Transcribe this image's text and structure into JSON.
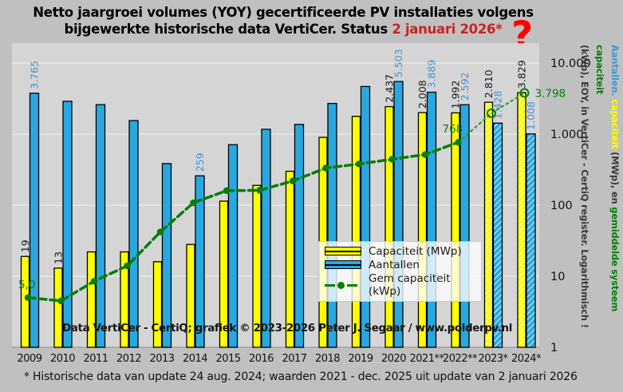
{
  "title": {
    "line1": "Netto jaargroei volumes (YOY) gecertificeerde PV installaties volgens",
    "line2_black": "bijgewerkte historische data VertiCer. Status ",
    "line2_red": "2 januari 2026*"
  },
  "question_mark": "?",
  "watermark": "Data VertiCer - CertiQ; grafiek © 2023-2026  Peter J. Segaar / www.polderpv.nl",
  "footnote": "* Historische data van update 24 aug. 2024; waarden 2021 - dec. 2025 uit update van 2 januari 2026",
  "palette": {
    "yellow": "#ffff00",
    "blue": "#29a8e0",
    "green": "#067d06",
    "green_projection": "#2f9a2f",
    "label_blue": "#3e97d4",
    "label_black": "#1a1a1a",
    "red_accent": "#cc2222",
    "question_red": "#ff0000",
    "plot_bg": "#d5d5d5",
    "outer_bg": "#c0c0c0",
    "gridline": "#e9e9e9"
  },
  "legend": {
    "items": [
      {
        "label": "Capaciteit (MWp)",
        "type": "bar",
        "color_key": "yellow"
      },
      {
        "label": "Aantallen",
        "type": "bar",
        "color_key": "blue"
      },
      {
        "label": "Gem capaciteit (kWp)",
        "type": "line",
        "color_key": "green"
      }
    ]
  },
  "axis": {
    "right_ticks": [
      "10.000",
      "1.000",
      "100",
      "10",
      "1"
    ],
    "right_tick_values": [
      10000,
      1000,
      100,
      10,
      1
    ],
    "caption_line1_parts": [
      {
        "text": "Aantallen.",
        "color_key": "label_blue"
      },
      {
        "text": " capaciteit",
        "color_key": "yellow"
      },
      {
        "text": " (MWp), en ",
        "color_key": "dark"
      },
      {
        "text": "gemiddelde systeem capaciteit",
        "color_key": "green"
      }
    ],
    "caption_line2": "(kWp), EOY, in VertiCer - CertiQ register. Logarithmisch !"
  },
  "chart_data": {
    "type": "bar",
    "subtype": "grouped bars + line, logarithmic y-axis",
    "title": "Netto jaargroei volumes (YOY) gecertificeerde PV installaties volgens bijgewerkte historische data VertiCer. Status 2 januari 2026*",
    "xlabel": "",
    "ylabel": "Aantallen. capaciteit (MWp), en gemiddelde systeem capaciteit (kWp), EOY, in VertiCer - CertiQ register. Logarithmisch !",
    "log_scale": true,
    "ylim": [
      1,
      19000
    ],
    "grid": "horizontal decades",
    "legend_position": "inside lower right",
    "categories": [
      "2009",
      "2010",
      "2011",
      "2012",
      "2013",
      "2014",
      "2015",
      "2016",
      "2017",
      "2018",
      "2019",
      "2020",
      "2021**",
      "2022**",
      "2023*",
      "2024*"
    ],
    "series": [
      {
        "name": "Capaciteit (MWp)",
        "type": "bar",
        "color_key": "yellow",
        "values": [
          19,
          13,
          22,
          22,
          16,
          28,
          114,
          190,
          300,
          900,
          1780,
          2437,
          2008,
          1992,
          2810,
          3829
        ],
        "labels": {
          "0": "19",
          "1": "13",
          "11": "2.437",
          "12": "2.008",
          "13": "1.992",
          "14": "2.810",
          "15": "3.829"
        },
        "hatched_from_index": 14
      },
      {
        "name": "Aantallen",
        "type": "bar",
        "color_key": "blue",
        "values": [
          3765,
          2900,
          2600,
          1550,
          385,
          259,
          710,
          1170,
          1370,
          2700,
          4680,
          5503,
          3889,
          2592,
          1428,
          1008
        ],
        "labels": {
          "0": "3.765",
          "5": "259",
          "11": "5.503",
          "12": "3.889",
          "13": "2.592",
          "14": "1.428",
          "15": "1.008"
        },
        "hatched_from_index": 14
      },
      {
        "name": "Gem capaciteit (kWp)",
        "type": "line",
        "color_key": "green",
        "values": [
          5.0,
          4.5,
          8.5,
          14,
          42,
          108,
          160,
          162,
          219,
          333,
          380,
          443,
          516,
          768,
          1968,
          3798
        ],
        "labels": {
          "0": "5,0",
          "13": "768",
          "15": "3.798"
        },
        "projected_from_index": 13
      }
    ]
  }
}
